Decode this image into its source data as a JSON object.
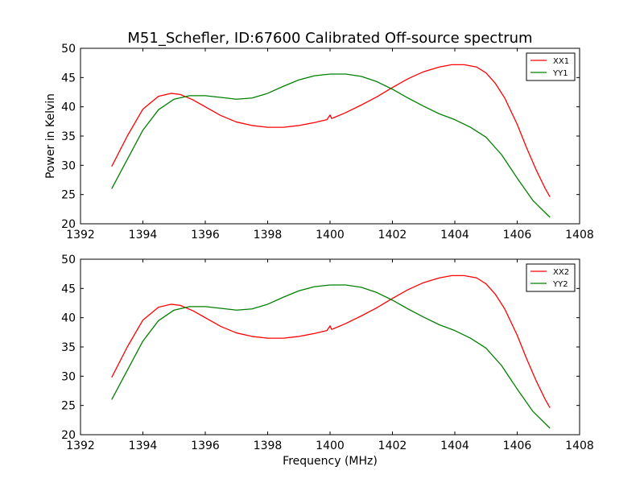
{
  "title": "M51_Schefler, ID:67600 Calibrated Off-source spectrum",
  "xlabel": "Frequency (MHz)",
  "ylabel": "Power in Kelvin",
  "chart_data": [
    {
      "type": "line",
      "xlim": [
        1392,
        1408
      ],
      "ylim": [
        20,
        50
      ],
      "xticks": [
        1392,
        1394,
        1396,
        1398,
        1400,
        1402,
        1404,
        1406,
        1408
      ],
      "yticks": [
        20,
        25,
        30,
        35,
        40,
        45,
        50
      ],
      "ylabel": "Power in Kelvin",
      "grid": false,
      "legend_position": "top-right",
      "series": [
        {
          "name": "XX1",
          "color": "#ff0000",
          "x": [
            1393.0,
            1393.5,
            1394.0,
            1394.5,
            1394.9,
            1395.2,
            1395.6,
            1396.0,
            1396.5,
            1397.0,
            1397.5,
            1398.0,
            1398.5,
            1399.0,
            1399.5,
            1399.9,
            1400.0,
            1400.05,
            1400.1,
            1400.5,
            1401.0,
            1401.5,
            1402.0,
            1402.5,
            1403.0,
            1403.5,
            1403.9,
            1404.3,
            1404.7,
            1405.0,
            1405.3,
            1405.6,
            1406.0,
            1406.3,
            1406.6,
            1406.9,
            1407.05
          ],
          "y": [
            29.8,
            35.0,
            39.6,
            41.8,
            42.3,
            42.1,
            41.2,
            40.0,
            38.5,
            37.4,
            36.8,
            36.5,
            36.5,
            36.8,
            37.3,
            37.8,
            38.6,
            38.0,
            38.1,
            39.0,
            40.3,
            41.7,
            43.3,
            44.8,
            46.0,
            46.8,
            47.2,
            47.2,
            46.8,
            45.8,
            44.0,
            41.5,
            37.0,
            33.0,
            29.3,
            26.0,
            24.6
          ]
        },
        {
          "name": "YY1",
          "color": "#008000",
          "x": [
            1393.0,
            1393.5,
            1394.0,
            1394.5,
            1395.0,
            1395.5,
            1396.0,
            1396.5,
            1397.0,
            1397.5,
            1398.0,
            1398.5,
            1399.0,
            1399.5,
            1400.0,
            1400.5,
            1401.0,
            1401.5,
            1402.0,
            1402.5,
            1403.0,
            1403.5,
            1404.0,
            1404.5,
            1405.0,
            1405.5,
            1406.0,
            1406.5,
            1407.05
          ],
          "y": [
            26.0,
            31.0,
            36.0,
            39.5,
            41.3,
            41.9,
            41.9,
            41.6,
            41.3,
            41.5,
            42.3,
            43.5,
            44.6,
            45.3,
            45.6,
            45.6,
            45.2,
            44.3,
            43.0,
            41.5,
            40.1,
            38.8,
            37.8,
            36.5,
            34.8,
            31.8,
            27.8,
            24.0,
            21.1
          ]
        }
      ]
    },
    {
      "type": "line",
      "xlim": [
        1392,
        1408
      ],
      "ylim": [
        20,
        50
      ],
      "xticks": [
        1392,
        1394,
        1396,
        1398,
        1400,
        1402,
        1404,
        1406,
        1408
      ],
      "yticks": [
        20,
        25,
        30,
        35,
        40,
        45,
        50
      ],
      "xlabel": "Frequency (MHz)",
      "grid": false,
      "legend_position": "top-right",
      "series": [
        {
          "name": "XX2",
          "color": "#ff0000",
          "x": [
            1393.0,
            1393.5,
            1394.0,
            1394.5,
            1394.9,
            1395.2,
            1395.6,
            1396.0,
            1396.5,
            1397.0,
            1397.5,
            1398.0,
            1398.5,
            1399.0,
            1399.5,
            1399.9,
            1400.0,
            1400.05,
            1400.1,
            1400.5,
            1401.0,
            1401.5,
            1402.0,
            1402.5,
            1403.0,
            1403.5,
            1403.9,
            1404.3,
            1404.7,
            1405.0,
            1405.3,
            1405.6,
            1406.0,
            1406.3,
            1406.6,
            1406.9,
            1407.05
          ],
          "y": [
            29.8,
            35.0,
            39.6,
            41.8,
            42.3,
            42.1,
            41.2,
            40.0,
            38.5,
            37.4,
            36.8,
            36.5,
            36.5,
            36.8,
            37.3,
            37.8,
            38.6,
            38.0,
            38.1,
            39.0,
            40.3,
            41.7,
            43.3,
            44.8,
            46.0,
            46.8,
            47.2,
            47.2,
            46.8,
            45.8,
            44.0,
            41.5,
            37.0,
            33.0,
            29.3,
            26.0,
            24.6
          ]
        },
        {
          "name": "YY2",
          "color": "#008000",
          "x": [
            1393.0,
            1393.5,
            1394.0,
            1394.5,
            1395.0,
            1395.5,
            1396.0,
            1396.5,
            1397.0,
            1397.5,
            1398.0,
            1398.5,
            1399.0,
            1399.5,
            1400.0,
            1400.5,
            1401.0,
            1401.5,
            1402.0,
            1402.5,
            1403.0,
            1403.5,
            1404.0,
            1404.5,
            1405.0,
            1405.5,
            1406.0,
            1406.5,
            1407.05
          ],
          "y": [
            26.0,
            31.0,
            36.0,
            39.5,
            41.3,
            41.9,
            41.9,
            41.6,
            41.3,
            41.5,
            42.3,
            43.5,
            44.6,
            45.3,
            45.6,
            45.6,
            45.2,
            44.3,
            43.0,
            41.5,
            40.1,
            38.8,
            37.8,
            36.5,
            34.8,
            31.8,
            27.8,
            24.0,
            21.1
          ]
        }
      ]
    }
  ]
}
